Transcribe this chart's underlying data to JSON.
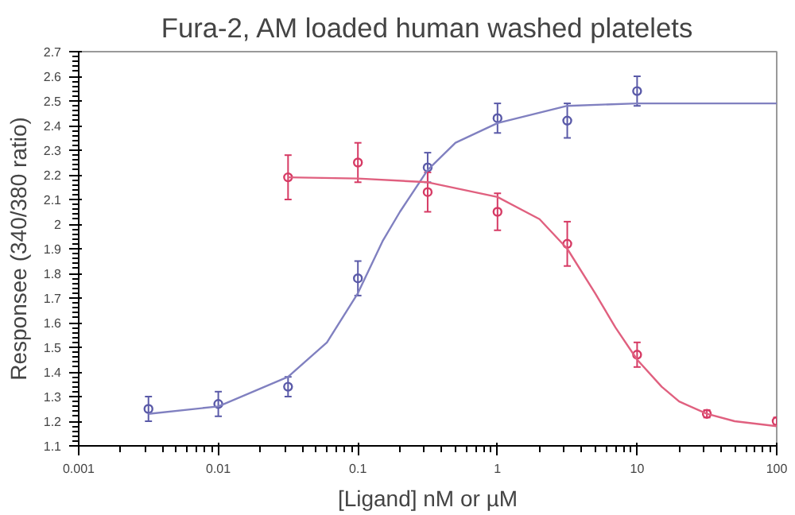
{
  "chart_data": {
    "type": "scatter",
    "title": "Fura-2, AM loaded human washed platelets",
    "xlabel": "[Ligand] nM or µM",
    "ylabel": "Responsee (340/380 ratio)",
    "log": "x",
    "grid": false,
    "marker": "circle",
    "xlim": [
      0.001,
      100
    ],
    "xticks": [
      0.001,
      0.01,
      0.1,
      1,
      10,
      100
    ],
    "ylim": [
      1.1,
      2.7
    ],
    "yticks": [
      1.1,
      1.2,
      1.3,
      1.4,
      1.5,
      1.6,
      1.7,
      1.8,
      1.9,
      2,
      2.1,
      2.2,
      2.3,
      2.4,
      2.5,
      2.6,
      2.7
    ],
    "series": [
      {
        "color": "#5a5aa8",
        "x": [
          0.00316,
          0.01,
          0.0316,
          0.1,
          0.316,
          1,
          3.16,
          10
        ],
        "values": [
          1.25,
          1.27,
          1.34,
          1.78,
          2.23,
          2.43,
          2.42,
          2.54
        ],
        "errors": [
          0.05,
          0.05,
          0.04,
          0.07,
          0.06,
          0.06,
          0.07,
          0.06
        ]
      },
      {
        "color": "#d63a64",
        "x": [
          0.0316,
          0.1,
          0.316,
          1,
          3.16,
          10,
          31.6,
          100
        ],
        "values": [
          2.19,
          2.25,
          2.13,
          2.05,
          1.92,
          1.47,
          1.23,
          1.2
        ],
        "errors": [
          0.09,
          0.08,
          0.08,
          0.075,
          0.09,
          0.05,
          0.015,
          0.015
        ]
      },
      {
        "type": "line",
        "color": "#8080c0",
        "marker": "none",
        "x": [
          0.00316,
          0.01,
          0.0316,
          0.06,
          0.1,
          0.15,
          0.2,
          0.316,
          0.5,
          1,
          3.16,
          10,
          100
        ],
        "values": [
          1.23,
          1.26,
          1.38,
          1.52,
          1.72,
          1.93,
          2.05,
          2.22,
          2.33,
          2.41,
          2.48,
          2.49,
          2.49
        ]
      },
      {
        "type": "line",
        "color": "#e0607f",
        "marker": "none",
        "x": [
          0.0316,
          0.1,
          0.316,
          1,
          2,
          3.16,
          5,
          7,
          10,
          15,
          20,
          31.6,
          50,
          100
        ],
        "values": [
          2.19,
          2.185,
          2.17,
          2.11,
          2.02,
          1.9,
          1.72,
          1.58,
          1.45,
          1.34,
          1.28,
          1.23,
          1.2,
          1.18
        ]
      }
    ]
  }
}
